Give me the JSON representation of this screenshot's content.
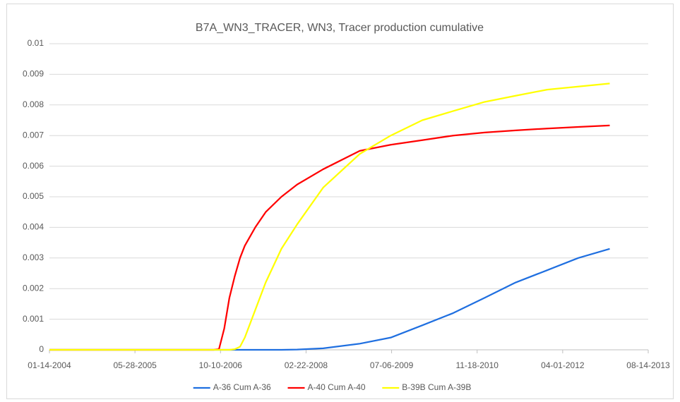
{
  "chart_data": {
    "type": "line",
    "title": "B7A_WN3_TRACER, WN3, Tracer production cumulative",
    "x": [
      "01-14-2004",
      "09-01-2006",
      "10-01-2006",
      "11-01-2006",
      "12-01-2006",
      "01-01-2007",
      "02-01-2007",
      "03-01-2007",
      "05-01-2007",
      "07-01-2007",
      "10-01-2007",
      "01-01-2008",
      "06-01-2008",
      "01-01-2009",
      "07-01-2009",
      "01-01-2010",
      "07-01-2010",
      "01-01-2011",
      "07-01-2011",
      "01-01-2012",
      "07-01-2012",
      "01-01-2013"
    ],
    "series": [
      {
        "name": "A-36 Cum A-36",
        "color": "#1f6fe0",
        "values": [
          0,
          0,
          0,
          0,
          0,
          0,
          0,
          0,
          0,
          0,
          0,
          1e-05,
          5e-05,
          0.0002,
          0.0004,
          0.0008,
          0.0012,
          0.0017,
          0.0022,
          0.0026,
          0.003,
          0.0033
        ]
      },
      {
        "name": "A-40 Cum A-40",
        "color": "#ff0000",
        "values": [
          0,
          0,
          2e-05,
          0.0007,
          0.0017,
          0.0024,
          0.003,
          0.0034,
          0.004,
          0.0045,
          0.005,
          0.0054,
          0.0059,
          0.0065,
          0.0067,
          0.00685,
          0.007,
          0.0071,
          0.00717,
          0.00723,
          0.00728,
          0.00733
        ]
      },
      {
        "name": "B-39B Cum A-39B",
        "color": "#ffff00",
        "values": [
          0,
          0,
          0,
          0,
          0,
          2e-05,
          0.0001,
          0.0004,
          0.0013,
          0.0022,
          0.0033,
          0.0041,
          0.0053,
          0.0064,
          0.007,
          0.0075,
          0.0078,
          0.0081,
          0.0083,
          0.0085,
          0.0086,
          0.0087
        ]
      }
    ],
    "xlim": [
      "01-14-2004",
      "08-14-2013"
    ],
    "xticks": [
      "01-14-2004",
      "05-28-2005",
      "10-10-2006",
      "02-22-2008",
      "07-06-2009",
      "11-18-2010",
      "04-01-2012",
      "08-14-2013"
    ],
    "ylim": [
      0,
      0.01
    ],
    "yticks": [
      0,
      0.001,
      0.002,
      0.003,
      0.004,
      0.005,
      0.006,
      0.007,
      0.008,
      0.009,
      0.01
    ],
    "grid": true,
    "legend": "bottom"
  }
}
